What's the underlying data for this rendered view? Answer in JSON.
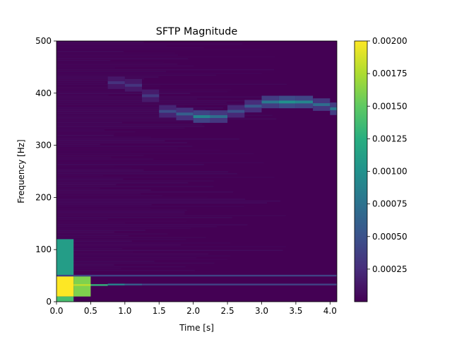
{
  "chart_data": {
    "type": "heatmap",
    "title": "SFTP Magnitude",
    "xlabel": "Time [s]",
    "ylabel": "Frequency [Hz]",
    "xlim": [
      0,
      4.1
    ],
    "ylim": [
      0,
      500
    ],
    "x_ticks": [
      "0.0",
      "0.5",
      "1.0",
      "1.5",
      "2.0",
      "2.5",
      "3.0",
      "3.5",
      "4.0"
    ],
    "y_ticks": [
      "0",
      "100",
      "200",
      "300",
      "400",
      "500"
    ],
    "colorbar": {
      "min": 0,
      "max": 0.002,
      "ticks": [
        "0.00025",
        "0.00050",
        "0.00075",
        "0.00100",
        "0.00125",
        "0.00150",
        "0.00175",
        "0.00200"
      ],
      "colormap": "viridis"
    },
    "grid": false,
    "time_bin_edges": [
      0,
      0.25,
      0.5,
      0.75,
      1.0,
      1.25,
      1.5,
      1.75,
      2.0,
      2.25,
      2.5,
      2.75,
      3.0,
      3.25,
      3.5,
      3.75,
      4.0,
      4.1
    ],
    "features": [
      {
        "label": "low-frequency band",
        "t": [
          0.0,
          0.25
        ],
        "f": [
          10,
          50
        ],
        "magnitude": 0.002
      },
      {
        "label": "low-frequency band",
        "t": [
          0.25,
          0.5
        ],
        "f": [
          10,
          50
        ],
        "magnitude": 0.0016
      },
      {
        "label": "low-frequency halo",
        "t": [
          0.0,
          0.25
        ],
        "f": [
          50,
          120
        ],
        "magnitude": 0.0011
      },
      {
        "label": "low-frequency halo",
        "t": [
          0.0,
          0.25
        ],
        "f": [
          0,
          10
        ],
        "magnitude": 0.0014
      }
    ],
    "tones": [
      {
        "t": [
          0.25,
          0.5
        ],
        "f": 32,
        "magnitude": 0.0018
      },
      {
        "t": [
          0.5,
          0.75
        ],
        "f": 32,
        "magnitude": 0.0013
      },
      {
        "t": [
          0.75,
          1.0
        ],
        "f": 33,
        "magnitude": 0.0009
      },
      {
        "t": [
          1.0,
          1.25
        ],
        "f": 33,
        "magnitude": 0.0006
      },
      {
        "t": [
          1.25,
          4.1
        ],
        "f": 33,
        "magnitude": 0.0004
      },
      {
        "t": [
          0.0,
          4.1
        ],
        "f": 50,
        "magnitude": 0.0004
      }
    ],
    "ridge": [
      {
        "t": 0.75,
        "f": 420,
        "magnitude": 0.00028
      },
      {
        "t": 1.0,
        "f": 415,
        "magnitude": 0.0003
      },
      {
        "t": 1.25,
        "f": 395,
        "magnitude": 0.00033
      },
      {
        "t": 1.5,
        "f": 365,
        "magnitude": 0.00045
      },
      {
        "t": 1.75,
        "f": 360,
        "magnitude": 0.0006
      },
      {
        "t": 2.0,
        "f": 355,
        "magnitude": 0.0009
      },
      {
        "t": 2.25,
        "f": 355,
        "magnitude": 0.0007
      },
      {
        "t": 2.5,
        "f": 365,
        "magnitude": 0.0005
      },
      {
        "t": 2.75,
        "f": 375,
        "magnitude": 0.00055
      },
      {
        "t": 3.0,
        "f": 383,
        "magnitude": 0.0008
      },
      {
        "t": 3.25,
        "f": 383,
        "magnitude": 0.001
      },
      {
        "t": 3.5,
        "f": 383,
        "magnitude": 0.0009
      },
      {
        "t": 3.75,
        "f": 378,
        "magnitude": 0.0007
      },
      {
        "t": 4.0,
        "f": 370,
        "magnitude": 0.0008
      }
    ]
  }
}
